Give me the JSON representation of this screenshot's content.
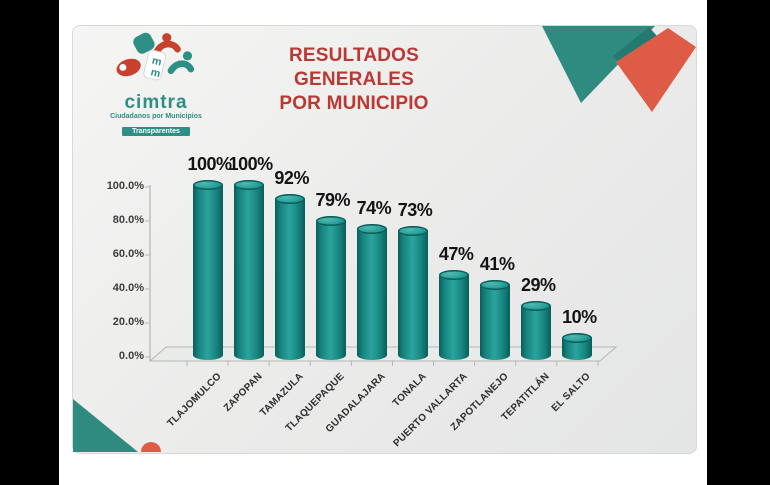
{
  "letterbox": {
    "color": "#000000"
  },
  "card": {
    "bg_light": "#f5f5f4",
    "bg_dark": "#e4e5e5"
  },
  "logo": {
    "brand": "cimtra",
    "tagline": "Ciudadanos por Municipios",
    "ribbon": "Transparentes",
    "teal": "#2e8f86",
    "red": "#c8402e"
  },
  "title": {
    "line1": "RESULTADOS GENERALES",
    "line2": "POR MUNICIPIO",
    "color": "#bc3832"
  },
  "chart_data": {
    "type": "bar",
    "subtype": "3d-cylinder",
    "title": "RESULTADOS GENERALES POR MUNICIPIO",
    "categories": [
      "TLAJOMULCO",
      "ZAPOPAN",
      "TAMAZULA",
      "TLAQUEPAQUE",
      "GUADALAJARA",
      "TONALA",
      "PUERTO VALLARTA",
      "ZAPOTLANEJO",
      "TEPATITLÁN",
      "EL SALTO"
    ],
    "values": [
      100,
      100,
      92,
      79,
      74,
      73,
      47,
      41,
      29,
      10
    ],
    "data_labels": [
      "100%",
      "100%",
      "92%",
      "79%",
      "74%",
      "73%",
      "47%",
      "41%",
      "29%",
      "10%"
    ],
    "ylabel": "",
    "xlabel": "",
    "ylim": [
      0,
      100
    ],
    "y_ticks": [
      "0.0%",
      "20.0%",
      "40.0%",
      "60.0%",
      "80.0%",
      "100.0%"
    ],
    "grid": "off",
    "legend": "off",
    "bar_color_mid": "#17837e",
    "bar_color_light": "#2ba49d",
    "bar_color_dark": "#0a5d5a",
    "cap_highlight": "#53b7af",
    "axis_color": "#b5b5b5",
    "floor_fill": "#e9eaea"
  },
  "decor": {
    "teal": "#2f8b80",
    "teal_dark": "#257a70",
    "red": "#de5b45"
  }
}
